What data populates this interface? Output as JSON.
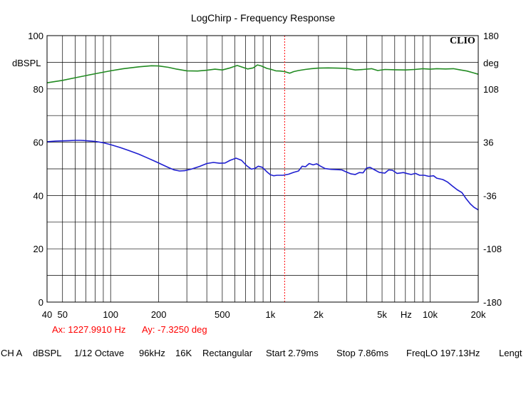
{
  "chart_data": {
    "type": "line",
    "title": "LogChirp - Frequency Response",
    "brand": "CLIO",
    "x_scale": "log",
    "xlim": [
      40,
      20000
    ],
    "x_ticks": [
      {
        "value": 40,
        "label": "40"
      },
      {
        "value": 50,
        "label": "50"
      },
      {
        "value": 100,
        "label": "100"
      },
      {
        "value": 200,
        "label": "200"
      },
      {
        "value": 500,
        "label": "500"
      },
      {
        "value": 1000,
        "label": "1k"
      },
      {
        "value": 2000,
        "label": "2k"
      },
      {
        "value": 5000,
        "label": "5k"
      },
      {
        "value": 10000,
        "label": "10k"
      },
      {
        "value": 20000,
        "label": "20k"
      }
    ],
    "x_unit_label": "Hz",
    "x_unit_at": 7070,
    "left_axis": {
      "unit": "dBSPL",
      "ylim": [
        0,
        100
      ],
      "ticks": [
        0,
        20,
        40,
        60,
        80,
        100
      ],
      "tick_labels": [
        "0",
        "20",
        "40",
        "60",
        "80",
        "100"
      ]
    },
    "right_axis": {
      "unit": "deg",
      "ylim": [
        -180,
        180
      ],
      "ticks": [
        -180,
        -108,
        -36,
        36,
        108,
        180
      ],
      "tick_labels": [
        "-180",
        "-108",
        "-36",
        "36",
        "108",
        "180"
      ]
    },
    "grid": true,
    "series": [
      {
        "color": "#228b22",
        "axis": "left",
        "points": [
          [
            40,
            82.3
          ],
          [
            50,
            83.2
          ],
          [
            60,
            84.2
          ],
          [
            70,
            85.0
          ],
          [
            80,
            85.7
          ],
          [
            100,
            86.8
          ],
          [
            120,
            87.6
          ],
          [
            150,
            88.3
          ],
          [
            180,
            88.7
          ],
          [
            200,
            88.6
          ],
          [
            230,
            88.1
          ],
          [
            260,
            87.4
          ],
          [
            300,
            86.8
          ],
          [
            350,
            86.7
          ],
          [
            400,
            87.0
          ],
          [
            450,
            87.4
          ],
          [
            500,
            87.1
          ],
          [
            560,
            87.9
          ],
          [
            620,
            88.8
          ],
          [
            680,
            88.0
          ],
          [
            720,
            87.5
          ],
          [
            780,
            87.9
          ],
          [
            830,
            89.0
          ],
          [
            880,
            88.6
          ],
          [
            950,
            87.7
          ],
          [
            1000,
            87.4
          ],
          [
            1080,
            86.8
          ],
          [
            1150,
            86.7
          ],
          [
            1227,
            86.5
          ],
          [
            1320,
            85.9
          ],
          [
            1400,
            86.5
          ],
          [
            1500,
            86.9
          ],
          [
            1650,
            87.3
          ],
          [
            1800,
            87.6
          ],
          [
            2000,
            87.8
          ],
          [
            2300,
            87.9
          ],
          [
            2600,
            87.8
          ],
          [
            3000,
            87.7
          ],
          [
            3400,
            87.1
          ],
          [
            3800,
            87.3
          ],
          [
            4300,
            87.6
          ],
          [
            4700,
            86.9
          ],
          [
            5200,
            87.3
          ],
          [
            6000,
            87.2
          ],
          [
            7000,
            87.1
          ],
          [
            8000,
            87.3
          ],
          [
            9000,
            87.6
          ],
          [
            10000,
            87.4
          ],
          [
            11000,
            87.6
          ],
          [
            12500,
            87.5
          ],
          [
            14000,
            87.6
          ],
          [
            15500,
            87.1
          ],
          [
            17000,
            86.7
          ],
          [
            18500,
            86.1
          ],
          [
            20000,
            85.5
          ]
        ]
      },
      {
        "color": "#1f1fd0",
        "axis": "left",
        "points": [
          [
            40,
            60.2
          ],
          [
            45,
            60.4
          ],
          [
            50,
            60.5
          ],
          [
            55,
            60.6
          ],
          [
            60,
            60.7
          ],
          [
            65,
            60.7
          ],
          [
            70,
            60.6
          ],
          [
            80,
            60.3
          ],
          [
            90,
            59.8
          ],
          [
            100,
            59.1
          ],
          [
            115,
            58.0
          ],
          [
            130,
            56.9
          ],
          [
            150,
            55.5
          ],
          [
            170,
            54.1
          ],
          [
            190,
            52.8
          ],
          [
            210,
            51.6
          ],
          [
            230,
            50.5
          ],
          [
            250,
            49.6
          ],
          [
            270,
            49.2
          ],
          [
            290,
            49.3
          ],
          [
            320,
            49.9
          ],
          [
            360,
            50.9
          ],
          [
            400,
            52.0
          ],
          [
            440,
            52.4
          ],
          [
            480,
            52.1
          ],
          [
            520,
            52.2
          ],
          [
            560,
            53.2
          ],
          [
            610,
            54.0
          ],
          [
            660,
            53.2
          ],
          [
            710,
            51.2
          ],
          [
            760,
            49.9
          ],
          [
            800,
            50.2
          ],
          [
            840,
            51.0
          ],
          [
            890,
            50.6
          ],
          [
            950,
            48.9
          ],
          [
            1000,
            47.8
          ],
          [
            1050,
            47.4
          ],
          [
            1100,
            47.6
          ],
          [
            1200,
            47.6
          ],
          [
            1300,
            48.0
          ],
          [
            1400,
            48.7
          ],
          [
            1500,
            49.2
          ],
          [
            1580,
            51.0
          ],
          [
            1660,
            50.8
          ],
          [
            1750,
            52.0
          ],
          [
            1850,
            51.5
          ],
          [
            1950,
            51.9
          ],
          [
            2050,
            51.1
          ],
          [
            2200,
            50.1
          ],
          [
            2400,
            49.8
          ],
          [
            2600,
            49.7
          ],
          [
            2800,
            49.6
          ],
          [
            3000,
            48.8
          ],
          [
            3200,
            48.1
          ],
          [
            3400,
            47.9
          ],
          [
            3600,
            48.6
          ],
          [
            3800,
            48.5
          ],
          [
            4000,
            50.3
          ],
          [
            4200,
            50.6
          ],
          [
            4500,
            49.6
          ],
          [
            4800,
            48.7
          ],
          [
            5200,
            48.4
          ],
          [
            5500,
            49.6
          ],
          [
            5800,
            49.5
          ],
          [
            6200,
            48.3
          ],
          [
            6800,
            48.6
          ],
          [
            7200,
            48.2
          ],
          [
            7600,
            47.9
          ],
          [
            8100,
            48.3
          ],
          [
            8600,
            47.6
          ],
          [
            9200,
            47.6
          ],
          [
            9800,
            47.2
          ],
          [
            10500,
            47.4
          ],
          [
            11000,
            46.5
          ],
          [
            12000,
            46.0
          ],
          [
            12800,
            45.1
          ],
          [
            13800,
            43.5
          ],
          [
            14800,
            42.1
          ],
          [
            15800,
            41.1
          ],
          [
            16800,
            38.8
          ],
          [
            17800,
            36.9
          ],
          [
            18800,
            35.6
          ],
          [
            20000,
            34.6
          ]
        ]
      }
    ],
    "cursor": {
      "x": 1227.991,
      "color": "#ff0000",
      "ax_text": "Ax: 1227.9910 Hz",
      "ay_text": "Ay: -7.3250 deg"
    }
  },
  "status_bar": [
    "CH A",
    "dBSPL",
    "1/12 Octave",
    "96kHz",
    "16K",
    "Rectangular",
    "Start 2.79ms",
    "Stop 7.86ms",
    "FreqLO 197.13Hz",
    "Lengt"
  ]
}
